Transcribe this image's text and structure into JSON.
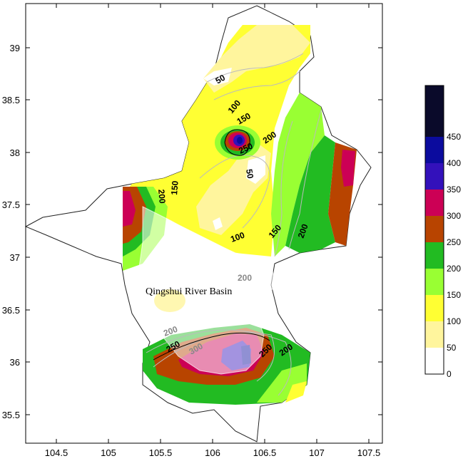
{
  "map": {
    "basin_label": "Qingshui River Basin",
    "x_ticks": [
      "104.5",
      "105",
      "105.5",
      "106",
      "106.5",
      "107",
      "107.5"
    ],
    "y_ticks": [
      "39",
      "38.5",
      "38",
      "37.5",
      "37",
      "36.5",
      "36",
      "35.5"
    ],
    "contour_labels": {
      "c50_north": "50",
      "c100_north": "100",
      "c150_north": "150",
      "c200_east_peak": "200",
      "c250_peak": "250",
      "c50_center": "50",
      "c150_west": "150",
      "c200_west": "200",
      "c100_center": "100",
      "c150_center": "150",
      "c200_east": "200",
      "c200_basin": "200",
      "c200_south_west": "200",
      "c250_south_west": "250",
      "c300_south": "300",
      "c250_south_east": "250",
      "c200_south_east": "200"
    }
  },
  "legend": {
    "levels": [
      "0",
      "50",
      "100",
      "150",
      "200",
      "250",
      "300",
      "350",
      "400",
      "450"
    ],
    "colors": [
      "#ffffff",
      "#fff59d",
      "#ffff33",
      "#99ff33",
      "#22bb22",
      "#b84400",
      "#cc0055",
      "#3311bb",
      "#0b0b9e",
      "#0a0a2a"
    ]
  }
}
